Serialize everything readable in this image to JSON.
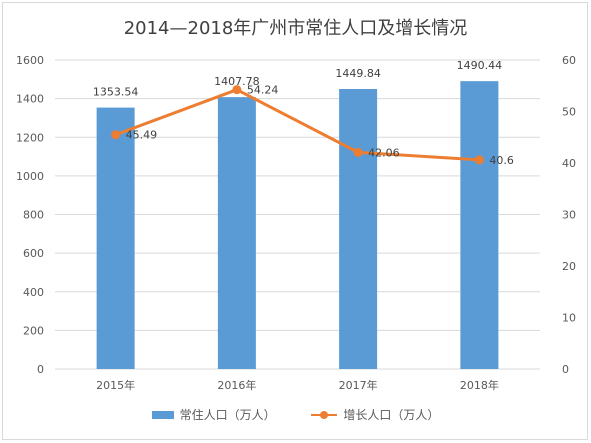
{
  "chart_data": {
    "type": "bar+line",
    "title": "2014—2018年广州市常住人口及增长情况",
    "categories": [
      "2015年",
      "2016年",
      "2017年",
      "2018年"
    ],
    "series": [
      {
        "name": "常住人口（万人）",
        "type": "bar",
        "axis": "left",
        "values": [
          1353.54,
          1407.78,
          1449.84,
          1490.44
        ],
        "labels": [
          "1353.54",
          "1407.78",
          "1449.84",
          "1490.44"
        ],
        "color": "#5b9bd5"
      },
      {
        "name": "增长人口（万人）",
        "type": "line",
        "axis": "right",
        "values": [
          45.49,
          54.24,
          42.06,
          40.6
        ],
        "labels": [
          "45.49",
          "54.24",
          "42.06",
          "40.6"
        ],
        "color": "#ed7d31"
      }
    ],
    "y_left": {
      "min": 0,
      "max": 1600,
      "ticks": [
        "0",
        "200",
        "400",
        "600",
        "800",
        "1000",
        "1200",
        "1400",
        "1600"
      ]
    },
    "y_right": {
      "min": 0,
      "max": 60,
      "ticks": [
        "0",
        "10",
        "20",
        "30",
        "40",
        "50",
        "60"
      ]
    },
    "grid": true,
    "legend_position": "bottom"
  }
}
